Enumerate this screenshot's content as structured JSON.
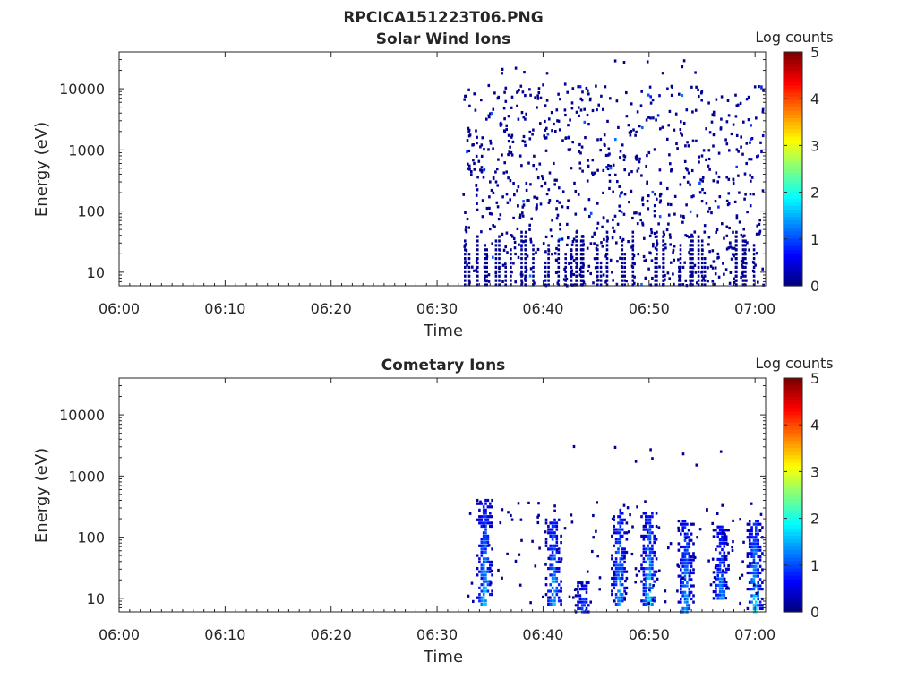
{
  "figure_title": "RPCICA151223T06.PNG",
  "chart_data": [
    {
      "type": "heatmap",
      "title": "Solar Wind Ions",
      "xlabel": "Time",
      "ylabel": "Energy (eV)",
      "x_tick_labels": [
        "06:00",
        "06:10",
        "06:20",
        "06:30",
        "06:40",
        "06:50",
        "07:00"
      ],
      "y_tick_labels": [
        "10",
        "100",
        "1000",
        "10000"
      ],
      "xlim_minutes": [
        0,
        61
      ],
      "ylim_eV": [
        6,
        40000
      ],
      "y_scale": "log",
      "colorbar": {
        "label": "Log counts",
        "range": [
          0,
          5
        ],
        "tick_labels": [
          "0",
          "1",
          "2",
          "3",
          "4",
          "5"
        ],
        "colormap": "jet"
      },
      "activity_start_minute": 32.5,
      "patches": [
        {
          "t": 33.0,
          "e": 2000,
          "v": 0.1
        },
        {
          "t": 33.5,
          "e": 600,
          "v": 0.1
        },
        {
          "t": 34.2,
          "e": 1200,
          "v": 0.15
        },
        {
          "t": 34.5,
          "e": 8,
          "v": 0.1
        },
        {
          "t": 35.0,
          "e": 300,
          "v": 0.1
        },
        {
          "t": 36.0,
          "e": 2500,
          "v": 0.1
        },
        {
          "t": 36.2,
          "e": 7,
          "v": 0.1
        },
        {
          "t": 37.0,
          "e": 900,
          "v": 0.1
        },
        {
          "t": 38.5,
          "e": 150,
          "v": 0.1
        },
        {
          "t": 39.0,
          "e": 1800,
          "v": 0.1
        },
        {
          "t": 40.5,
          "e": 9,
          "v": 0.1
        },
        {
          "t": 41.0,
          "e": 600,
          "v": 0.1
        },
        {
          "t": 43.5,
          "e": 9,
          "v": 0.1
        },
        {
          "t": 46.5,
          "e": 10,
          "v": 0.1
        },
        {
          "t": 47.5,
          "e": 1200,
          "v": 0.1
        },
        {
          "t": 49.0,
          "e": 500,
          "v": 0.1
        },
        {
          "t": 50.0,
          "e": 900,
          "v": 0.1
        },
        {
          "t": 50.3,
          "e": 8,
          "v": 0.1
        },
        {
          "t": 53.5,
          "e": 500,
          "v": 0.1
        },
        {
          "t": 54.0,
          "e": 9,
          "v": 0.1
        },
        {
          "t": 55.0,
          "e": 800,
          "v": 0.15
        },
        {
          "t": 56.5,
          "e": 300,
          "v": 0.1
        },
        {
          "t": 58.5,
          "e": 200,
          "v": 0.1
        },
        {
          "t": 59.2,
          "e": 600,
          "v": 0.15
        },
        {
          "t": 59.6,
          "e": 1500,
          "v": 0.8
        },
        {
          "t": 60.3,
          "e": 800,
          "v": 0.5
        }
      ]
    },
    {
      "type": "heatmap",
      "title": "Cometary Ions",
      "xlabel": "Time",
      "ylabel": "Energy (eV)",
      "x_tick_labels": [
        "06:00",
        "06:10",
        "06:20",
        "06:30",
        "06:40",
        "06:50",
        "07:00"
      ],
      "y_tick_labels": [
        "10",
        "100",
        "1000",
        "10000"
      ],
      "xlim_minutes": [
        0,
        61
      ],
      "ylim_eV": [
        6,
        40000
      ],
      "y_scale": "log",
      "colorbar": {
        "label": "Log counts",
        "range": [
          0,
          5
        ],
        "tick_labels": [
          "0",
          "1",
          "2",
          "3",
          "4",
          "5"
        ],
        "colormap": "jet"
      },
      "activity_start_minute": 32.5,
      "bursts": [
        {
          "t": 34.5,
          "emin": 8,
          "emax": 400,
          "peak": 2.0
        },
        {
          "t": 41.0,
          "emin": 8,
          "emax": 200,
          "peak": 2.0
        },
        {
          "t": 43.8,
          "emin": 6,
          "emax": 20,
          "peak": 1.4
        },
        {
          "t": 47.2,
          "emin": 8,
          "emax": 300,
          "peak": 2.0
        },
        {
          "t": 50.0,
          "emin": 8,
          "emax": 250,
          "peak": 2.2
        },
        {
          "t": 53.5,
          "emin": 6,
          "emax": 200,
          "peak": 1.9
        },
        {
          "t": 56.8,
          "emin": 10,
          "emax": 150,
          "peak": 1.7
        },
        {
          "t": 60.0,
          "emin": 6,
          "emax": 200,
          "peak": 2.2
        }
      ]
    }
  ]
}
